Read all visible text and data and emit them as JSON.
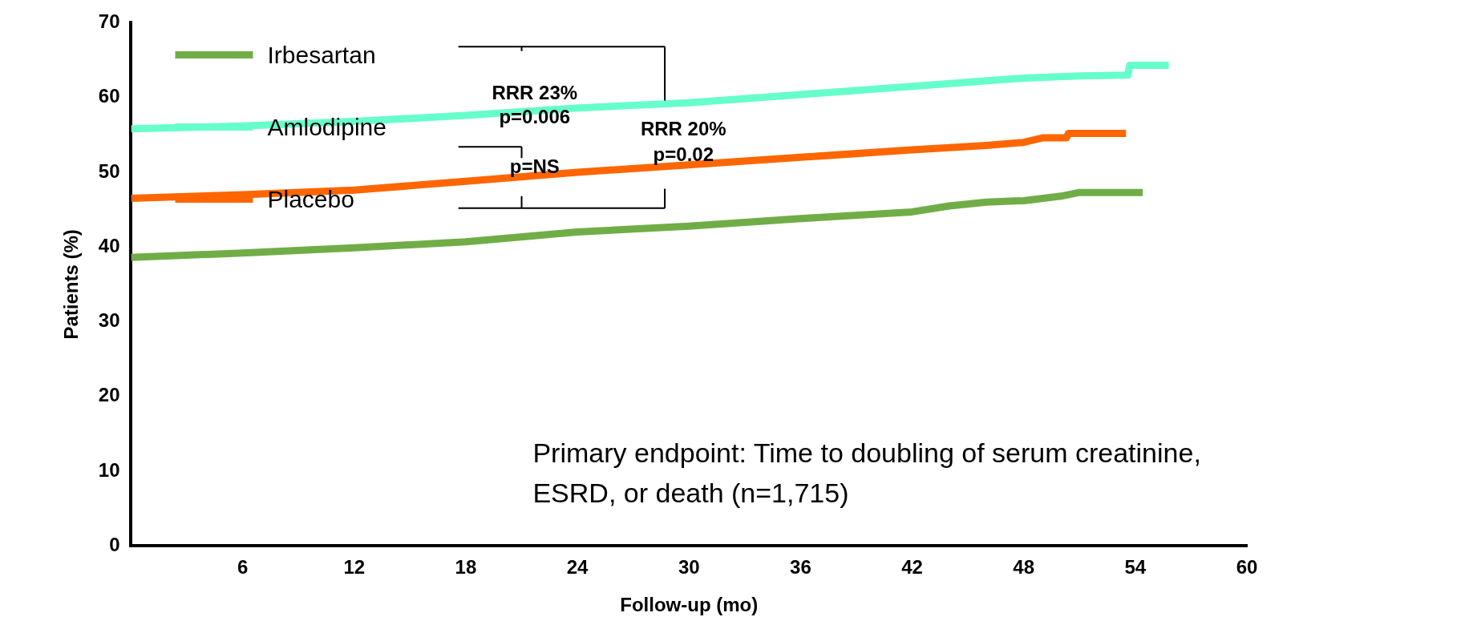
{
  "chart_data": {
    "type": "line",
    "xlabel": "Follow-up (mo)",
    "ylabel": "Patients (%)",
    "xlim": [
      0,
      60
    ],
    "xticks": [
      6,
      12,
      18,
      24,
      30,
      36,
      42,
      48,
      54,
      60
    ],
    "ylim": [
      0,
      70
    ],
    "yticks": [
      0,
      10,
      20,
      30,
      40,
      50,
      60,
      70
    ],
    "grid": false,
    "legend": "top left",
    "marker": "none",
    "line_style": "solid",
    "series": [
      {
        "name": "Irbesartan",
        "color": "#70ad47",
        "x": [
          0,
          6,
          12,
          18,
          24,
          30,
          36,
          42,
          44,
          46,
          48,
          50,
          51,
          54.4
        ],
        "values": [
          38.6,
          39.2,
          39.9,
          40.7,
          42.0,
          42.8,
          43.8,
          44.7,
          45.5,
          46.0,
          46.2,
          46.8,
          47.3,
          47.3
        ]
      },
      {
        "name": "Amlodipine",
        "color": "#66ffcc",
        "x": [
          0,
          6,
          12,
          18,
          24,
          30,
          36,
          42,
          48,
          51,
          53.6,
          53.7,
          55.8
        ],
        "values": [
          55.8,
          56.2,
          56.8,
          57.6,
          58.6,
          59.3,
          60.4,
          61.5,
          62.6,
          62.9,
          63.0,
          64.3,
          64.3
        ]
      },
      {
        "name": "Placebo",
        "color": "#ff6600",
        "x": [
          0,
          6,
          12,
          18,
          24,
          30,
          36,
          42,
          46,
          48,
          49,
          50.3,
          50.4,
          53.5
        ],
        "values": [
          46.5,
          47.0,
          47.6,
          48.8,
          50.0,
          51.0,
          52.0,
          53.0,
          53.6,
          54.0,
          54.6,
          54.6,
          55.2,
          55.2
        ]
      }
    ],
    "annotations": [
      "RRR 23%",
      "p=0.006",
      "p=NS",
      "RRR 20%",
      "p=0.02",
      "Primary endpoint: Time to doubling of serum creatinine, ESRD, or death (n=1,715)"
    ]
  }
}
